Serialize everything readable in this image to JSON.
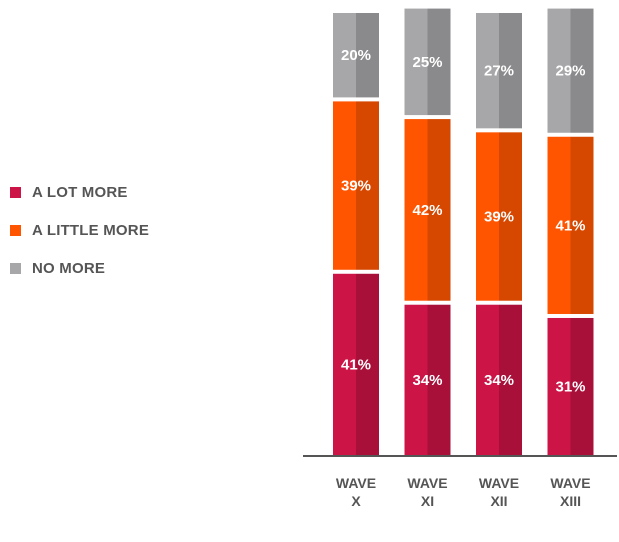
{
  "chart_data": {
    "type": "bar",
    "stacked": true,
    "categories": [
      [
        "WAVE",
        "X"
      ],
      [
        "WAVE",
        "XI"
      ],
      [
        "WAVE",
        "XII"
      ],
      [
        "WAVE",
        "XIII"
      ]
    ],
    "series": [
      {
        "name": "A LOT MORE",
        "values": [
          41,
          34,
          34,
          31
        ],
        "labels": [
          "41%",
          "34%",
          "34%",
          "31%"
        ],
        "color": "#cc1447"
      },
      {
        "name": "A LITTLE MORE",
        "values": [
          39,
          42,
          39,
          41
        ],
        "labels": [
          "39%",
          "42%",
          "39%",
          "41%"
        ],
        "color": "#ff5500"
      },
      {
        "name": "NO MORE",
        "values": [
          20,
          25,
          27,
          29
        ],
        "labels": [
          "20%",
          "25%",
          "27%",
          "29%"
        ],
        "color": "#a7a7a9"
      }
    ],
    "legend_position": "left",
    "grid": false
  }
}
